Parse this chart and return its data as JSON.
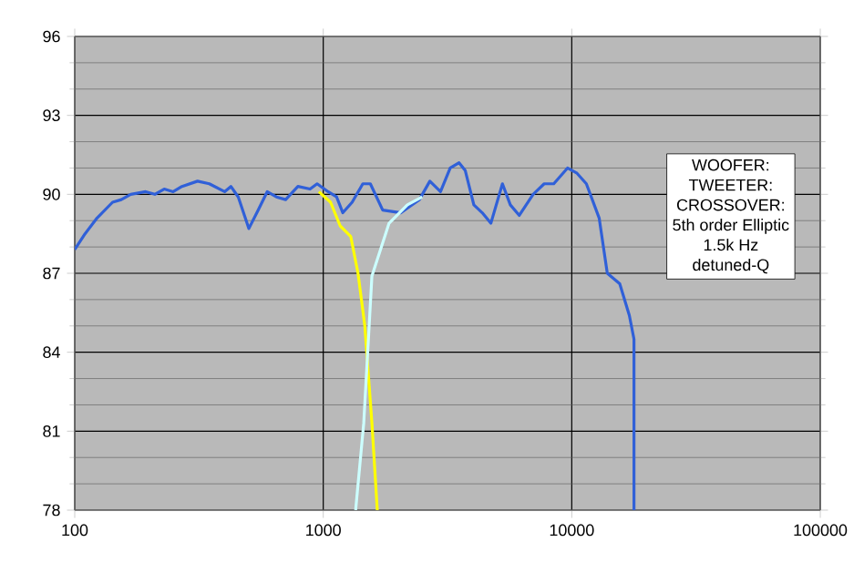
{
  "chart_data": {
    "type": "line",
    "x": [
      100,
      110,
      123,
      142,
      154,
      168,
      193,
      210,
      229,
      249,
      270,
      312,
      348,
      401,
      425,
      455,
      502,
      547,
      595,
      648,
      706,
      791,
      885,
      945,
      1046,
      1132,
      1199,
      1307,
      1443,
      1547,
      1735,
      2054,
      2437,
      2685,
      2964,
      3243,
      3521,
      3729,
      4036,
      4363,
      4726,
      5261,
      5660,
      6150,
      6992,
      7747,
      8465,
      9613,
      10500,
      11450,
      12890,
      13900,
      15600,
      17050,
      17800,
      17800
    ],
    "series": [
      {
        "color": "#3060d8",
        "values": [
          87.9,
          88.5,
          89.1,
          89.7,
          89.8,
          90.0,
          90.1,
          90.0,
          90.2,
          90.1,
          90.3,
          90.5,
          90.4,
          90.1,
          90.3,
          89.9,
          88.7,
          89.4,
          90.1,
          89.9,
          89.8,
          90.3,
          90.2,
          90.4,
          90.1,
          89.9,
          89.3,
          89.7,
          90.4,
          90.4,
          89.4,
          89.3,
          89.8,
          90.5,
          90.1,
          91.0,
          91.2,
          90.9,
          89.6,
          89.3,
          88.9,
          90.4,
          89.6,
          89.2,
          90.0,
          90.4,
          90.4,
          91.0,
          90.8,
          90.4,
          89.1,
          87.0,
          86.6,
          85.4,
          84.5,
          78.0
        ]
      },
      {
        "color": "#ffff00",
        "x": [
          960,
          1070,
          1170,
          1290,
          1380,
          1470,
          1570,
          1650
        ],
        "values": [
          90.1,
          89.7,
          88.8,
          88.4,
          87.0,
          85.0,
          81.3,
          78.0
        ]
      },
      {
        "color": "#ccffff",
        "x": [
          1350,
          1455,
          1570,
          1840,
          2180,
          2500
        ],
        "values": [
          78.0,
          81.3,
          86.9,
          88.9,
          89.6,
          89.9
        ]
      }
    ],
    "log": "x",
    "grid": true,
    "xlim": [
      100,
      100000
    ],
    "xticks": [
      100,
      1000,
      10000,
      100000
    ],
    "ylim": [
      78,
      96
    ],
    "yticks": [
      78,
      81,
      84,
      87,
      90,
      93,
      96
    ],
    "annotations": [
      "WOOFER:",
      "TWEETER:",
      "CROSSOVER:",
      "5th order Elliptic",
      "1.5k Hz",
      "detuned-Q"
    ]
  }
}
